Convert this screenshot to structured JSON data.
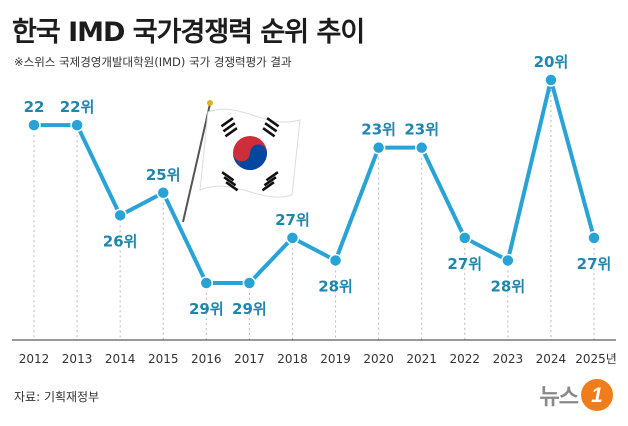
{
  "title": "한국 IMD 국가경쟁력 순위 추이",
  "subtitle": "※스위스 국제경영개발대학원(IMD) 국가 경쟁력평가 결과",
  "source": "자료: 기획재정부",
  "logo": {
    "text": "뉴스",
    "mark": "1"
  },
  "colors": {
    "line": "#29a3d6",
    "label": "#1f86ad",
    "axis": "#333333",
    "grid": "#bbbbbb"
  },
  "chart_data": {
    "type": "line",
    "title": "한국 IMD 국가경쟁력 순위 추이",
    "categories": [
      "2012",
      "2013",
      "2014",
      "2015",
      "2016",
      "2017",
      "2018",
      "2019",
      "2020",
      "2021",
      "2022",
      "2023",
      "2024",
      "2025년"
    ],
    "values": [
      22,
      22,
      26,
      25,
      29,
      29,
      27,
      28,
      23,
      23,
      27,
      28,
      20,
      27
    ],
    "point_labels": [
      "22",
      "22위",
      "26위",
      "25위",
      "29위",
      "29위",
      "27위",
      "28위",
      "23위",
      "23위",
      "27위",
      "28위",
      "20위",
      "27위"
    ],
    "y_inverted": true,
    "ylim": [
      20,
      29
    ],
    "grid": "vertical dashed lines"
  }
}
